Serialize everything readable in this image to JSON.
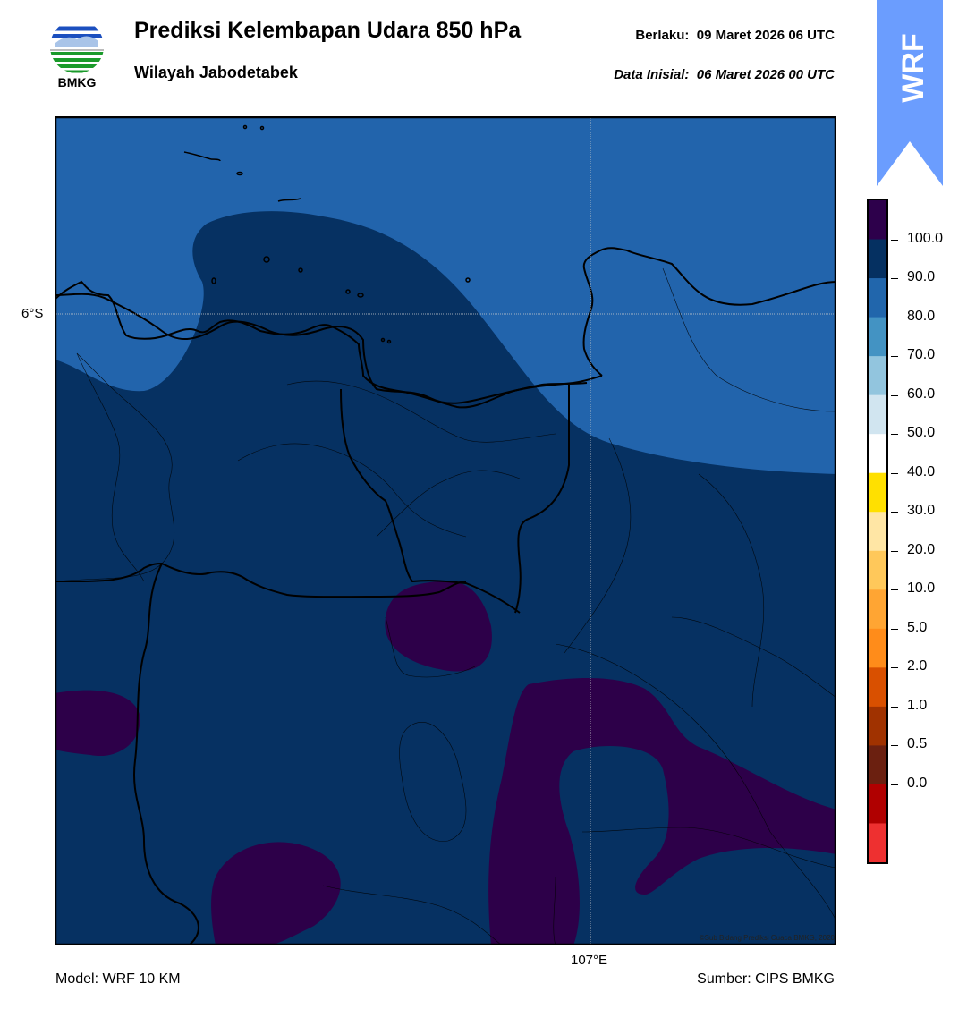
{
  "header": {
    "logo_text": "BMKG",
    "title": "Prediksi Kelembapan Udara 850 hPa",
    "region": "Wilayah Jabodetabek",
    "valid_label": "Berlaku:",
    "valid_time": "09 Maret 2026 06 UTC",
    "init_label": "Data Inisial:",
    "init_time": "06 Maret 2026 00 UTC"
  },
  "badge": {
    "text": "WRF",
    "color": "#6b9dfe"
  },
  "map": {
    "lat_label": "6°S",
    "lon_label": "107°E",
    "copyright": "©Sub Bidang Prediksi Cuaca BMKG, 2020",
    "field_levels": [
      {
        "range": "80-90",
        "color": "#2166ac"
      },
      {
        "range": "90-100",
        "color": "#053061"
      },
      {
        "range": ">100",
        "color": "#2d004b"
      }
    ]
  },
  "colorbar": {
    "labels": [
      "100.0",
      "90.0",
      "80.0",
      "70.0",
      "60.0",
      "50.0",
      "40.0",
      "30.0",
      "20.0",
      "10.0",
      "5.0",
      "2.0",
      "1.0",
      "0.5",
      "0.0"
    ],
    "colors_top_to_bottom": [
      "#2d004b",
      "#053061",
      "#2166ac",
      "#4393c3",
      "#92c5de",
      "#d1e5f0",
      "#ffffff",
      "#ffe000",
      "#ffe6a5",
      "#ffc85a",
      "#ffa533",
      "#ff8c1a",
      "#d95000",
      "#a03200",
      "#6b2010",
      "#b00000",
      "#ee3030"
    ]
  },
  "footer": {
    "model": "Model: WRF 10 KM",
    "source": "Sumber: CIPS BMKG"
  }
}
